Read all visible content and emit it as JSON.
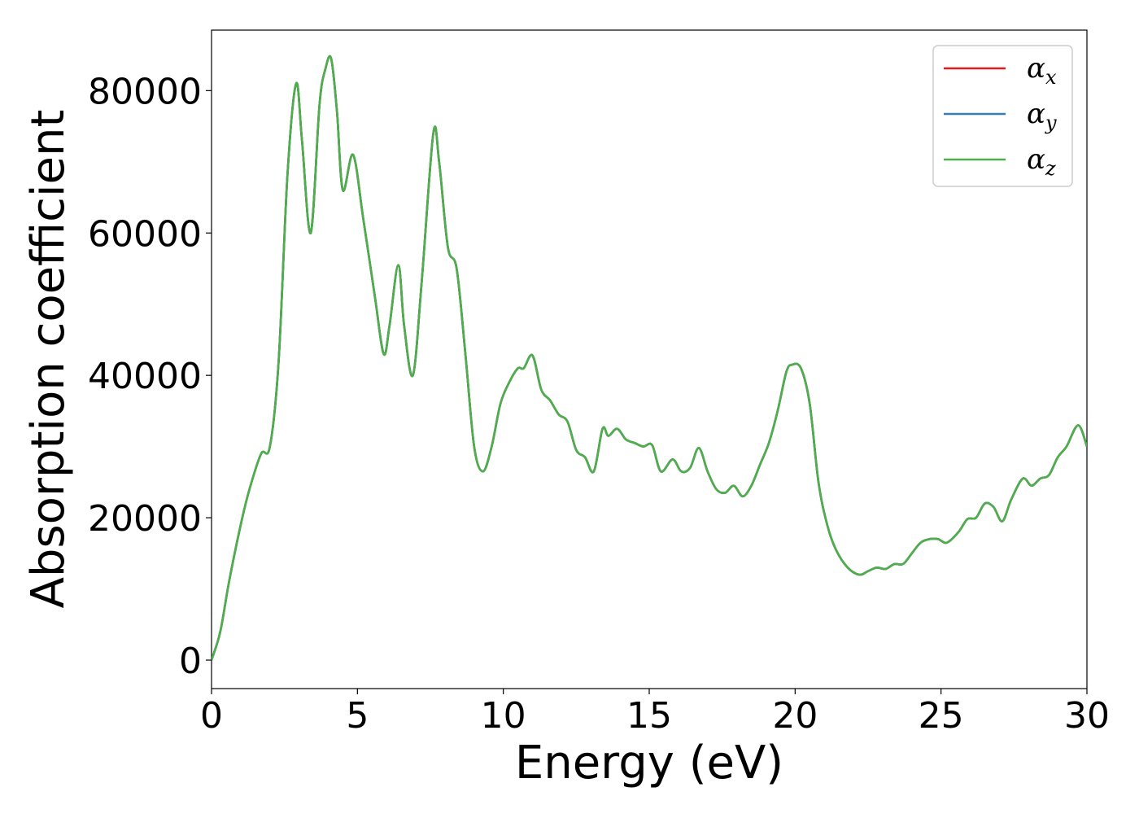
{
  "chart_data": {
    "type": "line",
    "title": "",
    "xlabel": "Energy (eV)",
    "ylabel": "Absorption coefficient",
    "xlim": [
      0,
      30
    ],
    "ylim": [
      -4000,
      88500
    ],
    "xticks": [
      0,
      5,
      10,
      15,
      20,
      25,
      30
    ],
    "yticks": [
      0,
      20000,
      40000,
      60000,
      80000
    ],
    "xtick_labels": [
      "0",
      "5",
      "10",
      "15",
      "20",
      "25",
      "30"
    ],
    "ytick_labels": [
      "0",
      "20000",
      "40000",
      "60000",
      "80000"
    ],
    "grid": false,
    "legend_position": "top-right",
    "x": [
      0,
      0.3,
      0.6,
      1.0,
      1.3,
      1.7,
      2.0,
      2.3,
      2.6,
      2.9,
      3.1,
      3.4,
      3.7,
      3.9,
      4.1,
      4.3,
      4.5,
      4.85,
      5.2,
      5.6,
      5.9,
      6.1,
      6.4,
      6.6,
      6.9,
      7.2,
      7.6,
      7.8,
      8.1,
      8.4,
      8.7,
      9.0,
      9.3,
      9.6,
      9.9,
      10.2,
      10.5,
      10.7,
      11.0,
      11.3,
      11.6,
      11.9,
      12.2,
      12.5,
      12.8,
      13.1,
      13.4,
      13.6,
      13.9,
      14.2,
      14.5,
      14.8,
      15.1,
      15.4,
      15.8,
      16.1,
      16.4,
      16.7,
      17.0,
      17.3,
      17.6,
      17.9,
      18.2,
      18.5,
      18.8,
      19.1,
      19.4,
      19.7,
      19.9,
      20.2,
      20.5,
      20.8,
      21.1,
      21.4,
      21.8,
      22.2,
      22.5,
      22.8,
      23.1,
      23.4,
      23.7,
      24.0,
      24.3,
      24.6,
      24.9,
      25.2,
      25.6,
      25.9,
      26.2,
      26.5,
      26.8,
      27.1,
      27.4,
      27.8,
      28.1,
      28.4,
      28.7,
      29.0,
      29.3,
      29.7,
      30.0
    ],
    "series": [
      {
        "name": "α_x",
        "color": "#e41a1c",
        "ref": "s0"
      },
      {
        "name": "α_y",
        "color": "#377eb8",
        "ref": "s0"
      },
      {
        "name": "α_z",
        "color": "#4daf4a",
        "ref": "s0"
      }
    ],
    "y_shared": [
      0,
      4000,
      11000,
      19000,
      24000,
      29000,
      30000,
      42000,
      68000,
      81000,
      73000,
      60000,
      78000,
      83000,
      84500,
      77000,
      66000,
      71000,
      62000,
      51000,
      43000,
      47000,
      55500,
      47000,
      40000,
      53000,
      74000,
      70000,
      58000,
      55000,
      43000,
      30000,
      26500,
      30000,
      36000,
      39000,
      41000,
      41000,
      42800,
      38000,
      36500,
      34500,
      33500,
      29500,
      28500,
      26500,
      32500,
      31500,
      32500,
      31000,
      30500,
      30000,
      30200,
      26500,
      28200,
      26500,
      27000,
      29800,
      26500,
      24000,
      23500,
      24500,
      23000,
      24500,
      27500,
      30500,
      35000,
      40500,
      41500,
      41000,
      36000,
      25000,
      19000,
      15500,
      13000,
      12000,
      12500,
      13000,
      12800,
      13500,
      13500,
      15000,
      16500,
      17000,
      17000,
      16500,
      18000,
      19800,
      20000,
      22000,
      21500,
      19500,
      22500,
      25500,
      24500,
      25500,
      26000,
      28500,
      30000,
      33000,
      30000
    ]
  }
}
